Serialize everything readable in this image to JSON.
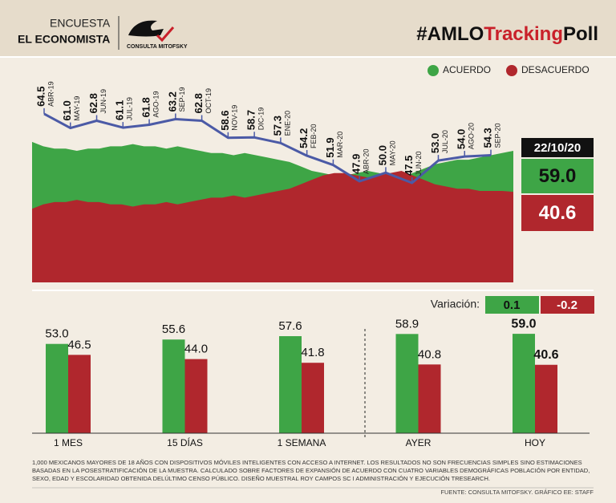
{
  "header": {
    "survey": "ENCUESTA",
    "publisher": "EL ECONOMISTA",
    "pollster": "CONSULTA MITOFSKY",
    "hashtag": [
      "#AMLO",
      "Tracking",
      "Poll"
    ]
  },
  "chart_data": [
    {
      "type": "area",
      "ylim": [
        0,
        100
      ],
      "series": [
        {
          "name": "ACUERDO",
          "color": "#3ea546",
          "values": [
            63,
            61,
            60,
            60,
            59,
            60,
            60,
            61,
            61,
            62,
            61,
            61,
            60,
            61,
            60,
            59,
            58,
            58,
            57,
            58,
            57,
            56,
            55,
            54,
            52,
            50,
            49,
            48,
            48,
            49,
            50,
            49,
            48,
            47,
            49,
            51,
            53,
            54,
            55,
            55,
            56,
            57,
            58,
            59
          ]
        },
        {
          "name": "DESACUERDO",
          "color": "#b0272d",
          "values": [
            33,
            35,
            36,
            36,
            37,
            36,
            36,
            35,
            35,
            34,
            35,
            35,
            36,
            35,
            36,
            37,
            38,
            38,
            39,
            38,
            39,
            40,
            41,
            42,
            44,
            46,
            48,
            49,
            49,
            48,
            47,
            48,
            49,
            50,
            48,
            46,
            44,
            43,
            42,
            42,
            41,
            41,
            41,
            40.6
          ]
        }
      ]
    },
    {
      "type": "line",
      "ylim": [
        40,
        70
      ],
      "categories": [
        "ABR-19",
        "MAY-19",
        "JUN-19",
        "JUL-19",
        "AGO-19",
        "SEP-19",
        "OCT-19",
        "NOV-19",
        "DIC-19",
        "ENE-20",
        "FEB-20",
        "MAR-20",
        "ABR-20",
        "MAY-20",
        "JUN-20",
        "JUL-20",
        "AGO-20",
        "SEP-20"
      ],
      "series": [
        {
          "color": "#4b5aa6",
          "values": [
            64.5,
            61,
            62.8,
            61.1,
            61.8,
            63.2,
            62.8,
            58.6,
            58.7,
            57.3,
            54.2,
            51.9,
            47.9,
            50,
            47.5,
            53,
            54,
            54.3
          ],
          "value_labels": [
            "64.5",
            "61.0",
            "62.8",
            "61.1",
            "61.8",
            "63.2",
            "62.8",
            "58.6",
            "58.7",
            "57.3",
            "54.2",
            "51.9",
            "47.9",
            "50.0",
            "47.5",
            "53.0",
            "54.0",
            "54.3"
          ]
        }
      ]
    },
    {
      "type": "bar",
      "ylim": [
        0,
        60
      ],
      "categories": [
        "1 MES",
        "15 DÍAS",
        "1 SEMANA",
        "AYER",
        "HOY"
      ],
      "series": [
        {
          "name": "ACUERDO",
          "color": "#3ea546",
          "values": [
            53,
            55.6,
            57.6,
            58.9,
            59
          ],
          "value_labels": [
            "53.0",
            "55.6",
            "57.6",
            "58.9",
            "59.0"
          ]
        },
        {
          "name": "DESACUERDO",
          "color": "#b0272d",
          "values": [
            46.5,
            44,
            41.8,
            40.8,
            40.6
          ],
          "value_labels": [
            "46.5",
            "44.0",
            "41.8",
            "40.8",
            "40.6"
          ]
        }
      ]
    }
  ],
  "current": {
    "date": "22/10/20",
    "values": [
      59,
      40.6
    ],
    "value_labels": [
      "59.0",
      "40.6"
    ],
    "variation_label": "Variación:",
    "variation": [
      0.1,
      -0.2
    ]
  },
  "footnote": [
    "1,000 MEXICANOS MAYORES DE 18 AÑOS CON DISPOSITIVOS MÓVILES INTELIGENTES CON ACCESO A INTERNET. LOS RESULTADOS NO SON FRECUENCIAS SIMPLES SINO ESTIMACIONES",
    "BASADAS EN LA POSESTRATIFICACIÓN DE LA MUESTRA. CALCULADO SOBRE FACTORES DE EXPANSIÓN DE ACUERDO CON CUATRO VARIABLES DEMOGRÁFICAS POBLACIÓN POR ENTIDAD,",
    "SEXO, EDAD Y ESCOLARIDAD OBTENIDA DELÚLTIMO CENSO PÚBLICO. DISEÑO MUESTRAL ROY CAMPOS SC I ADMINISTRACIÓN Y EJECUCIÓN TRESEARCH."
  ],
  "source": "FUENTE: CONSULTA MITOFSKY. GRÁFICO EE: STAFF"
}
